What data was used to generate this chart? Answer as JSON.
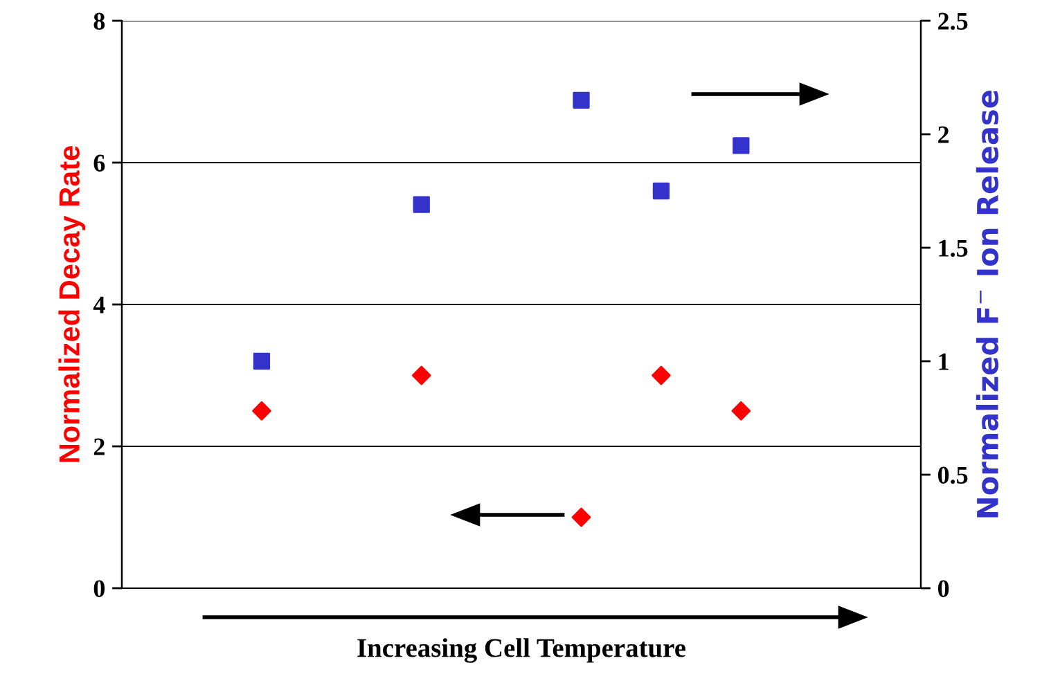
{
  "chart_data": {
    "type": "scatter",
    "xlabel": "Increasing Cell Temperature",
    "ylabel": "Normalized Decay Rate",
    "y2label": "Normalized F$^{−}$ Ion Release",
    "categories": [
      null,
      null,
      null,
      null,
      null,
      null,
      null,
      null,
      null,
      null,
      null,
      null,
      null,
      null,
      null,
      null,
      null,
      null,
      null,
      null
    ],
    "series": [
      {
        "color": "#ff0000",
        "marker": "diamond",
        "values": [
          null,
          null,
          null,
          2.5,
          null,
          null,
          null,
          3,
          null,
          null,
          null,
          1,
          null,
          3,
          null,
          2.5,
          null,
          null,
          null,
          null
        ]
      },
      {
        "color": "#3333cc",
        "marker": "square",
        "axis": "y2",
        "values": [
          null,
          null,
          null,
          1.0,
          null,
          null,
          null,
          1.69,
          null,
          null,
          null,
          2.15,
          null,
          1.75,
          null,
          1.95,
          null,
          null,
          null,
          null
        ]
      }
    ],
    "ylim": [
      0,
      8
    ],
    "yticks": [
      0,
      2,
      4,
      6,
      8
    ],
    "y2lim": [
      0,
      2.5
    ],
    "y2ticks": [
      0,
      0.5,
      1,
      1.5,
      2,
      2.5
    ],
    "grid": "y",
    "legend": false
  }
}
